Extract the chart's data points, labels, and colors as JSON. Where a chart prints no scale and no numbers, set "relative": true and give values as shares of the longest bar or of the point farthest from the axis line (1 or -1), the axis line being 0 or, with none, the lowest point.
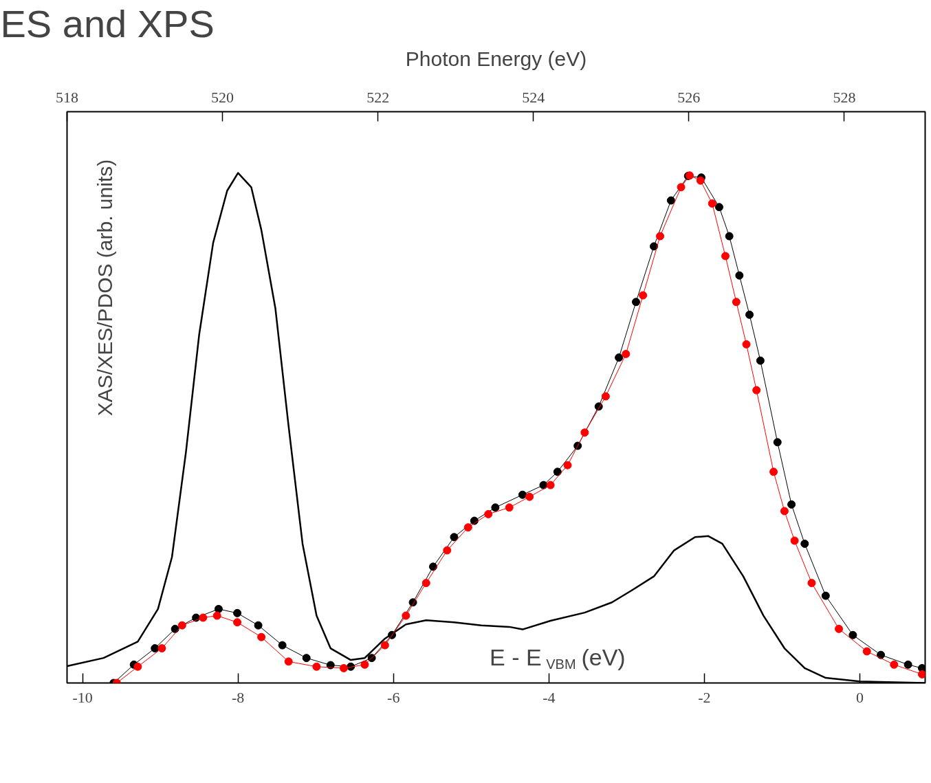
{
  "chart_data": {
    "type": "line",
    "title": "ES and XPS",
    "xlabel": "E - E$_{VBM}$ (eV)",
    "ylabel": "XAS/XES/PDOS (arb. units)",
    "x2label": "Photon Energy (eV)",
    "relative": true,
    "xlim": [
      -10.2,
      0.84
    ],
    "xticks": [
      -10,
      -8,
      -6,
      -4,
      -2,
      0
    ],
    "x2lim": [
      518.0,
      529.04
    ],
    "x2ticks": [
      518,
      520,
      522,
      524,
      526,
      528
    ],
    "grid": false,
    "marker": "circle",
    "line_style": "solid",
    "series": [
      {
        "color": "#000000",
        "marker": "none",
        "x": [
          -10.2,
          -9.73,
          -9.29,
          -9.03,
          -8.85,
          -8.67,
          -8.5,
          -8.32,
          -8.14,
          -8.0,
          -7.83,
          -7.7,
          -7.52,
          -7.35,
          -7.17,
          -6.99,
          -6.81,
          -6.55,
          -6.37,
          -6.11,
          -5.84,
          -5.58,
          -5.22,
          -4.87,
          -4.51,
          -4.34,
          -3.98,
          -3.54,
          -3.19,
          -2.92,
          -2.65,
          -2.39,
          -2.12,
          -1.95,
          -1.77,
          -1.5,
          -1.24,
          -0.97,
          -0.71,
          -0.44,
          0.0,
          0.84
        ],
        "values": [
          0.033,
          0.049,
          0.081,
          0.145,
          0.247,
          0.453,
          0.683,
          0.863,
          0.965,
          1.0,
          0.972,
          0.888,
          0.735,
          0.504,
          0.273,
          0.132,
          0.068,
          0.045,
          0.049,
          0.087,
          0.115,
          0.123,
          0.119,
          0.113,
          0.11,
          0.105,
          0.122,
          0.138,
          0.158,
          0.183,
          0.209,
          0.26,
          0.286,
          0.288,
          0.273,
          0.209,
          0.132,
          0.068,
          0.029,
          0.01,
          0.003,
          0.0
        ]
      },
      {
        "color": "#000000",
        "x": [
          -9.6,
          -9.34,
          -9.07,
          -8.81,
          -8.54,
          -8.25,
          -8.01,
          -7.74,
          -7.43,
          -7.12,
          -6.81,
          -6.55,
          -6.28,
          -6.02,
          -5.75,
          -5.49,
          -5.22,
          -4.96,
          -4.69,
          -4.34,
          -4.07,
          -3.89,
          -3.63,
          -3.36,
          -3.1,
          -2.88,
          -2.65,
          -2.43,
          -2.21,
          -2.04,
          -1.81,
          -1.68,
          -1.55,
          -1.42,
          -1.28,
          -1.06,
          -0.88,
          -0.71,
          -0.44,
          -0.09,
          0.27,
          0.62,
          0.8
        ],
        "values": [
          0.0,
          0.036,
          0.068,
          0.106,
          0.128,
          0.145,
          0.137,
          0.113,
          0.074,
          0.049,
          0.035,
          0.032,
          0.049,
          0.094,
          0.158,
          0.228,
          0.286,
          0.318,
          0.344,
          0.369,
          0.388,
          0.414,
          0.465,
          0.542,
          0.638,
          0.747,
          0.856,
          0.946,
          0.994,
          0.991,
          0.933,
          0.876,
          0.799,
          0.722,
          0.632,
          0.472,
          0.35,
          0.273,
          0.171,
          0.094,
          0.055,
          0.036,
          0.029
        ]
      },
      {
        "color": "#ff0000",
        "x": [
          -9.56,
          -9.29,
          -8.98,
          -8.72,
          -8.45,
          -8.27,
          -8.01,
          -7.7,
          -7.35,
          -6.99,
          -6.64,
          -6.37,
          -6.11,
          -5.84,
          -5.58,
          -5.31,
          -5.04,
          -4.78,
          -4.51,
          -4.25,
          -3.98,
          -3.76,
          -3.54,
          -3.27,
          -3.01,
          -2.79,
          -2.57,
          -2.3,
          -2.19,
          -2.05,
          -1.9,
          -1.73,
          -1.59,
          -1.46,
          -1.33,
          -1.11,
          -0.97,
          -0.84,
          -0.62,
          -0.27,
          0.09,
          0.44,
          0.8
        ],
        "values": [
          0.0,
          0.032,
          0.068,
          0.113,
          0.128,
          0.132,
          0.119,
          0.09,
          0.042,
          0.032,
          0.029,
          0.036,
          0.074,
          0.132,
          0.196,
          0.26,
          0.305,
          0.331,
          0.344,
          0.365,
          0.388,
          0.427,
          0.491,
          0.562,
          0.645,
          0.76,
          0.876,
          0.972,
          0.995,
          0.985,
          0.94,
          0.837,
          0.747,
          0.664,
          0.574,
          0.414,
          0.337,
          0.279,
          0.196,
          0.106,
          0.062,
          0.036,
          0.017
        ]
      }
    ]
  }
}
